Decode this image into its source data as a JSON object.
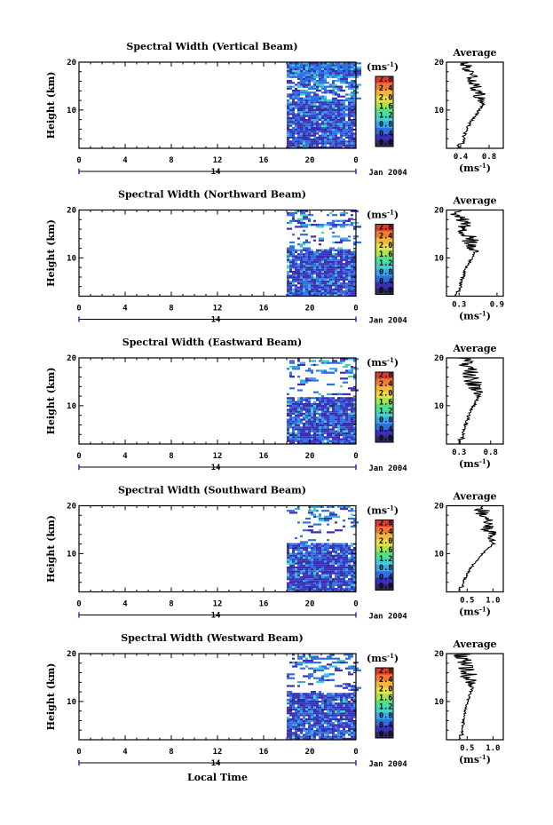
{
  "figure": {
    "x_axis_label": "Local Time",
    "date_label": "Jan 2004",
    "day_label": "14"
  },
  "colorbar": {
    "unit": "(ms",
    "unit_exp": "-1",
    "unit_close": ")",
    "tick_labels": [
      "2.8",
      "2.4",
      "2.0",
      "1.6",
      "1.2",
      "0.8",
      "0.4",
      "0.0"
    ],
    "colors": [
      "#2b2b5e",
      "#3b2fb8",
      "#2f6fe0",
      "#38a8ee",
      "#40d2c8",
      "#4fe08a",
      "#a8e64a",
      "#e8e040",
      "#f5b43a",
      "#f07a2e",
      "#e03a28"
    ]
  },
  "chart_data": [
    {
      "type": "heatmap",
      "title": "Spectral Width (Vertical Beam)",
      "xlabel": "Local Time",
      "ylabel": "Height (km)",
      "xlim": [
        0,
        24
      ],
      "ylim": [
        2,
        20
      ],
      "x_ticks": [
        "0",
        "4",
        "8",
        "12",
        "16",
        "20",
        "0"
      ],
      "y_ticks": [
        "10",
        "20"
      ],
      "data_start_hour": 18,
      "low_layer_top_km": 12,
      "upper_coverage": 0.9,
      "average_profile": {
        "title": "Average",
        "xlabel": "(ms",
        "x_ticks": [
          "0.4",
          "0.8"
        ],
        "xlim": [
          0.2,
          1.0
        ],
        "peak_km": 11,
        "peak_value": 0.72,
        "floor_value": 0.42,
        "upper_noise": 0.2
      }
    },
    {
      "type": "heatmap",
      "title": "Spectral Width (Northward Beam)",
      "xlabel": "Local Time",
      "ylabel": "Height (km)",
      "xlim": [
        0,
        24
      ],
      "ylim": [
        2,
        20
      ],
      "x_ticks": [
        "0",
        "4",
        "8",
        "12",
        "16",
        "20",
        "0"
      ],
      "y_ticks": [
        "10",
        "20"
      ],
      "data_start_hour": 18,
      "low_layer_top_km": 12,
      "upper_coverage": 0.22,
      "average_profile": {
        "title": "Average",
        "xlabel": "(ms",
        "x_ticks": [
          "0.3",
          "0.9"
        ],
        "xlim": [
          0.1,
          1.0
        ],
        "peak_km": 11,
        "peak_value": 0.55,
        "floor_value": 0.3,
        "upper_noise": 0.3
      }
    },
    {
      "type": "heatmap",
      "title": "Spectral Width (Eastward Beam)",
      "xlabel": "Local Time",
      "ylabel": "Height (km)",
      "xlim": [
        0,
        24
      ],
      "ylim": [
        2,
        20
      ],
      "x_ticks": [
        "0",
        "4",
        "8",
        "12",
        "16",
        "20",
        "0"
      ],
      "y_ticks": [
        "10",
        "20"
      ],
      "data_start_hour": 18,
      "low_layer_top_km": 12,
      "upper_coverage": 0.18,
      "average_profile": {
        "title": "Average",
        "xlabel": "(ms",
        "x_ticks": [
          "0.3",
          "0.8"
        ],
        "xlim": [
          0.1,
          1.0
        ],
        "peak_km": 12,
        "peak_value": 0.62,
        "floor_value": 0.35,
        "upper_noise": 0.3
      }
    },
    {
      "type": "heatmap",
      "title": "Spectral Width (Southward Beam)",
      "xlabel": "Local Time",
      "ylabel": "Height (km)",
      "xlim": [
        0,
        24
      ],
      "ylim": [
        2,
        20
      ],
      "x_ticks": [
        "0",
        "4",
        "8",
        "12",
        "16",
        "20",
        "0"
      ],
      "y_ticks": [
        "10",
        "20"
      ],
      "data_start_hour": 18,
      "low_layer_top_km": 12.5,
      "upper_coverage": 0.12,
      "average_profile": {
        "title": "Average",
        "xlabel": "(ms",
        "x_ticks": [
          "0.5",
          "1.0"
        ],
        "xlim": [
          0.1,
          1.2
        ],
        "peak_km": 12,
        "peak_value": 1.0,
        "floor_value": 0.4,
        "upper_noise": 0.3
      }
    },
    {
      "type": "heatmap",
      "title": "Spectral Width (Westward Beam)",
      "xlabel": "Local Time",
      "ylabel": "Height (km)",
      "xlim": [
        0,
        24
      ],
      "ylim": [
        2,
        20
      ],
      "x_ticks": [
        "0",
        "4",
        "8",
        "12",
        "16",
        "20",
        "0"
      ],
      "y_ticks": [
        "10",
        "20"
      ],
      "data_start_hour": 18,
      "low_layer_top_km": 12,
      "upper_coverage": 0.25,
      "average_profile": {
        "title": "Average",
        "xlabel": "(ms",
        "x_ticks": [
          "0.5",
          "1.0"
        ],
        "xlim": [
          0.1,
          1.2
        ],
        "peak_km": 13,
        "peak_value": 0.6,
        "floor_value": 0.4,
        "upper_noise": 0.35
      }
    }
  ]
}
